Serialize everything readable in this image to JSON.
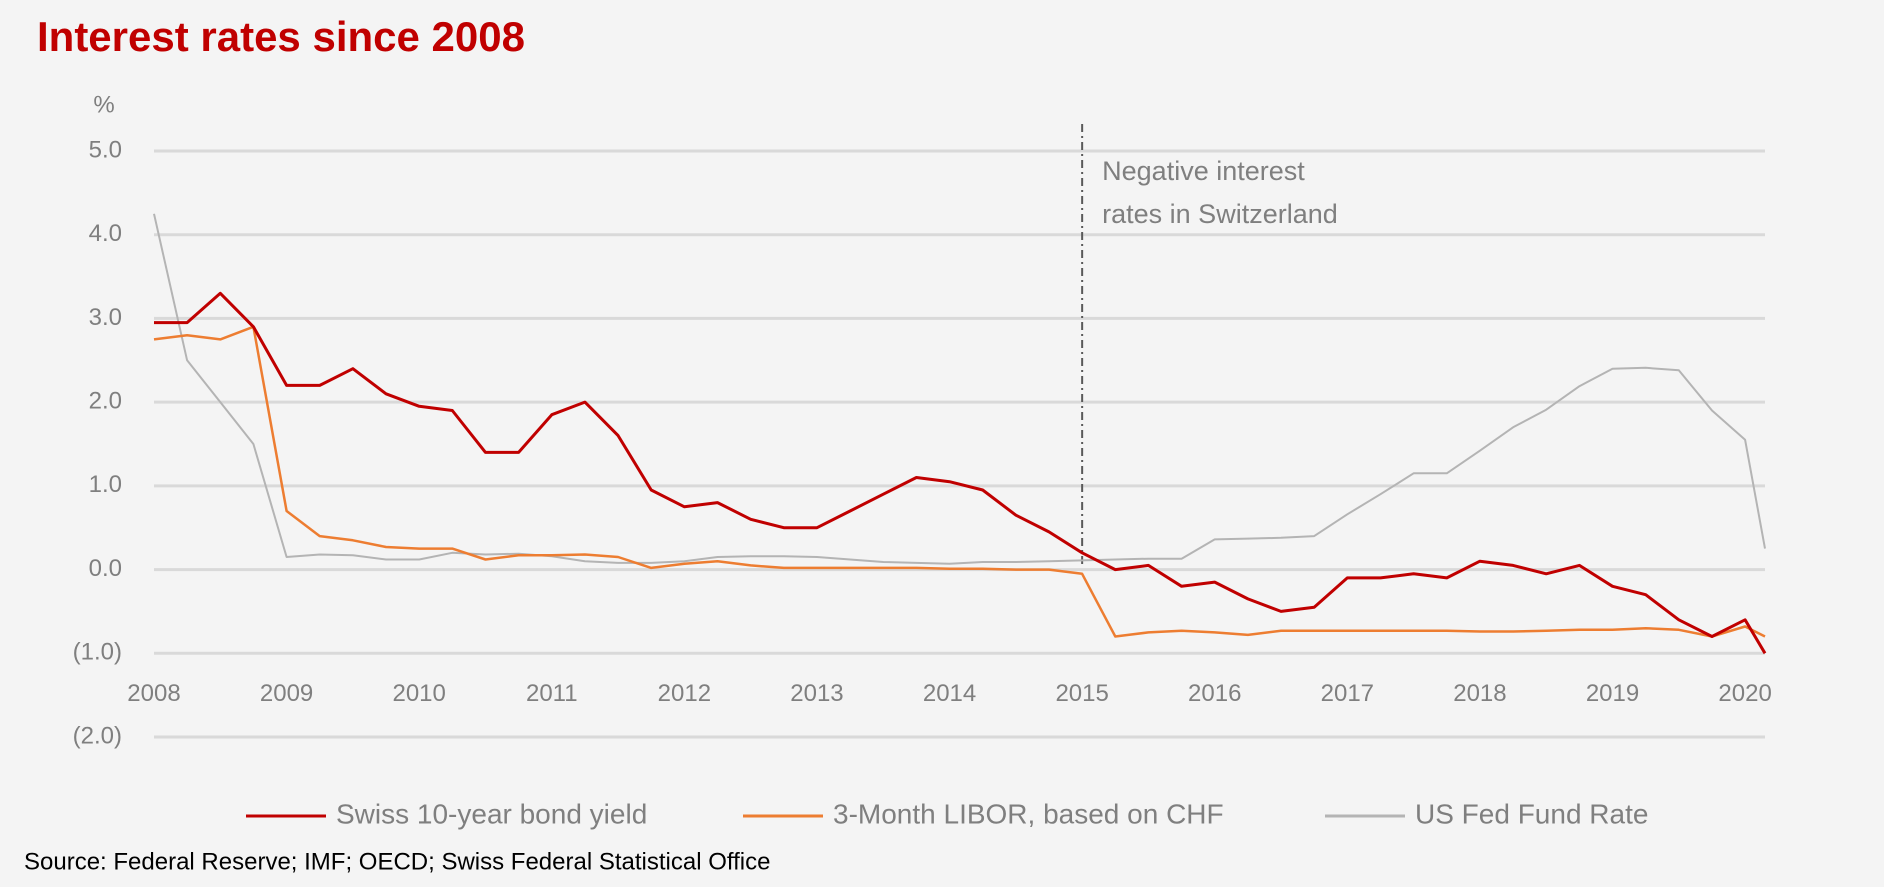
{
  "chart_data": {
    "type": "line",
    "title": "Interest rates since 2008",
    "y_unit": "%",
    "source": "Source: Federal Reserve; IMF; OECD; Swiss Federal Statistical Office",
    "annotation": {
      "text": [
        "Negative interest",
        "rates in Switzerland"
      ],
      "x": 2015
    },
    "x": [
      2008,
      2008.25,
      2008.5,
      2008.75,
      2009,
      2009.25,
      2009.5,
      2009.75,
      2010,
      2010.25,
      2010.5,
      2010.75,
      2011,
      2011.25,
      2011.5,
      2011.75,
      2012,
      2012.25,
      2012.5,
      2012.75,
      2013,
      2013.25,
      2013.5,
      2013.75,
      2014,
      2014.25,
      2014.5,
      2014.75,
      2015,
      2015.25,
      2015.5,
      2015.75,
      2016,
      2016.25,
      2016.5,
      2016.75,
      2017,
      2017.25,
      2017.5,
      2017.75,
      2018,
      2018.25,
      2018.5,
      2018.75,
      2019,
      2019.25,
      2019.5,
      2019.75,
      2020,
      2020.15
    ],
    "series": [
      {
        "name": "Swiss 10-year bond yield",
        "color": "#c00000",
        "width": 3,
        "values": [
          2.95,
          2.95,
          3.3,
          2.9,
          2.2,
          2.2,
          2.4,
          2.1,
          1.95,
          1.9,
          1.4,
          1.4,
          1.85,
          2.0,
          1.6,
          0.95,
          0.75,
          0.8,
          0.6,
          0.5,
          0.5,
          0.7,
          0.9,
          1.1,
          1.05,
          0.95,
          0.65,
          0.45,
          0.2,
          0.0,
          0.05,
          -0.2,
          -0.15,
          -0.35,
          -0.5,
          -0.45,
          -0.1,
          -0.1,
          -0.05,
          -0.1,
          0.1,
          0.05,
          -0.05,
          0.05,
          -0.2,
          -0.3,
          -0.6,
          -0.8,
          -0.6,
          -1.0
        ]
      },
      {
        "name": "3-Month LIBOR, based on CHF",
        "color": "#ed7d31",
        "width": 2.5,
        "values": [
          2.75,
          2.8,
          2.75,
          2.9,
          0.7,
          0.4,
          0.35,
          0.27,
          0.25,
          0.25,
          0.12,
          0.17,
          0.17,
          0.18,
          0.15,
          0.02,
          0.07,
          0.1,
          0.05,
          0.02,
          0.02,
          0.02,
          0.02,
          0.02,
          0.01,
          0.01,
          0.0,
          0.0,
          -0.05,
          -0.8,
          -0.75,
          -0.73,
          -0.75,
          -0.78,
          -0.73,
          -0.73,
          -0.73,
          -0.73,
          -0.73,
          -0.73,
          -0.74,
          -0.74,
          -0.73,
          -0.72,
          -0.72,
          -0.7,
          -0.72,
          -0.8,
          -0.68,
          -0.8
        ]
      },
      {
        "name": "US Fed Fund Rate",
        "color": "#b4b4b4",
        "width": 2,
        "values": [
          4.25,
          2.5,
          2.0,
          1.5,
          0.15,
          0.18,
          0.17,
          0.12,
          0.12,
          0.2,
          0.18,
          0.19,
          0.16,
          0.1,
          0.08,
          0.08,
          0.1,
          0.15,
          0.16,
          0.16,
          0.15,
          0.12,
          0.09,
          0.08,
          0.07,
          0.09,
          0.09,
          0.1,
          0.11,
          0.12,
          0.13,
          0.13,
          0.36,
          0.37,
          0.38,
          0.4,
          0.66,
          0.9,
          1.15,
          1.15,
          1.42,
          1.7,
          1.91,
          2.19,
          2.4,
          2.41,
          2.38,
          1.9,
          1.55,
          0.25
        ]
      }
    ],
    "xlim": [
      2008,
      2020.15
    ],
    "xticks": [
      2008,
      2009,
      2010,
      2011,
      2012,
      2013,
      2014,
      2015,
      2016,
      2017,
      2018,
      2019,
      2020
    ],
    "ylim": [
      -2,
      5
    ],
    "yticks": [
      {
        "value": 5,
        "label": "5.0"
      },
      {
        "value": 4,
        "label": "4.0"
      },
      {
        "value": 3,
        "label": "3.0"
      },
      {
        "value": 2,
        "label": "2.0"
      },
      {
        "value": 1,
        "label": "1.0"
      },
      {
        "value": 0,
        "label": "0.0"
      },
      {
        "value": -1,
        "label": "(1.0)"
      },
      {
        "value": -2,
        "label": "(2.0)"
      }
    ],
    "grid": true
  }
}
